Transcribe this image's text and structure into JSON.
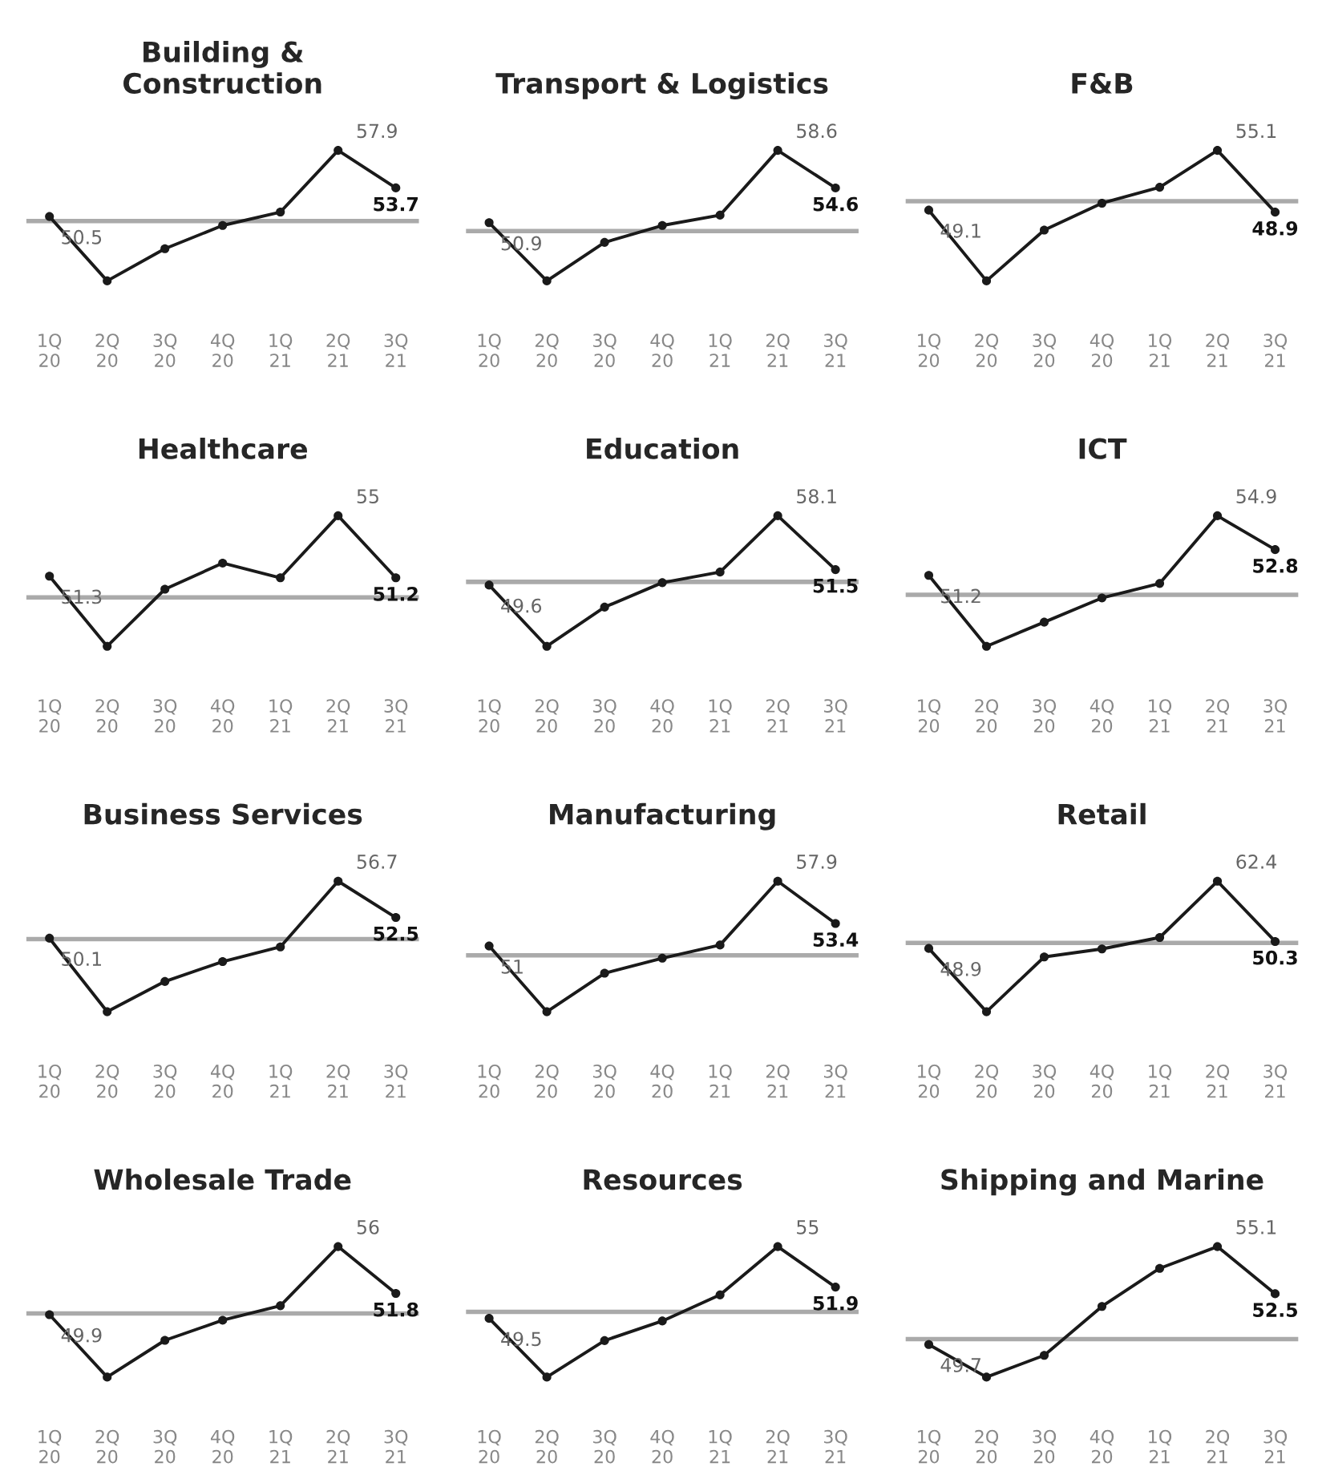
{
  "chart_data": [
    {
      "type": "line",
      "title": "Building &\nConstruction",
      "categories": [
        "1Q\n20",
        "2Q\n20",
        "3Q\n20",
        "4Q\n20",
        "1Q\n21",
        "2Q\n21",
        "3Q\n21"
      ],
      "series": [
        {
          "color": "#1a1a1a",
          "values": [
            50.5,
            43.3,
            46.9,
            49.5,
            51.0,
            57.9,
            53.7
          ],
          "value_labels": [
            "50.5",
            null,
            null,
            null,
            null,
            "57.9",
            "53.7"
          ]
        }
      ],
      "tick_labels": "x",
      "marker": "circle",
      "line_style": "solid",
      "grid": false,
      "legend": false,
      "ref_lines": [
        {
          "axis": "y",
          "value": 50,
          "color": "#aaaaaa"
        }
      ]
    },
    {
      "type": "line",
      "title": "Transport & Logistics",
      "categories": [
        "1Q\n20",
        "2Q\n20",
        "3Q\n20",
        "4Q\n20",
        "1Q\n21",
        "2Q\n21",
        "3Q\n21"
      ],
      "series": [
        {
          "color": "#1a1a1a",
          "values": [
            50.9,
            44.7,
            48.8,
            50.6,
            51.7,
            58.6,
            54.6
          ],
          "value_labels": [
            "50.9",
            null,
            null,
            null,
            null,
            "58.6",
            "54.6"
          ]
        }
      ],
      "tick_labels": "x",
      "marker": "circle",
      "line_style": "solid",
      "grid": false,
      "legend": false,
      "ref_lines": [
        {
          "axis": "y",
          "value": 50,
          "color": "#aaaaaa"
        }
      ]
    },
    {
      "type": "line",
      "title": "F&B",
      "categories": [
        "1Q\n20",
        "2Q\n20",
        "3Q\n20",
        "4Q\n20",
        "1Q\n21",
        "2Q\n21",
        "3Q\n21"
      ],
      "series": [
        {
          "color": "#1a1a1a",
          "values": [
            49.1,
            42.0,
            47.1,
            49.8,
            51.4,
            55.1,
            48.9
          ],
          "value_labels": [
            "49.1",
            null,
            null,
            null,
            null,
            "55.1",
            "48.9"
          ]
        }
      ],
      "tick_labels": "x",
      "marker": "circle",
      "line_style": "solid",
      "grid": false,
      "legend": false,
      "ref_lines": [
        {
          "axis": "y",
          "value": 50,
          "color": "#aaaaaa"
        }
      ]
    },
    {
      "type": "line",
      "title": "Healthcare",
      "categories": [
        "1Q\n20",
        "2Q\n20",
        "3Q\n20",
        "4Q\n20",
        "1Q\n21",
        "2Q\n21",
        "3Q\n21"
      ],
      "series": [
        {
          "color": "#1a1a1a",
          "values": [
            51.3,
            47.0,
            50.5,
            52.1,
            51.2,
            55,
            51.2
          ],
          "value_labels": [
            "51.3",
            null,
            null,
            null,
            null,
            "55",
            "51.2"
          ]
        }
      ],
      "tick_labels": "x",
      "marker": "circle",
      "line_style": "solid",
      "grid": false,
      "legend": false,
      "ref_lines": [
        {
          "axis": "y",
          "value": 50,
          "color": "#aaaaaa"
        }
      ]
    },
    {
      "type": "line",
      "title": "Education",
      "categories": [
        "1Q\n20",
        "2Q\n20",
        "3Q\n20",
        "4Q\n20",
        "1Q\n21",
        "2Q\n21",
        "3Q\n21"
      ],
      "series": [
        {
          "color": "#1a1a1a",
          "values": [
            49.6,
            42.1,
            46.9,
            49.9,
            51.2,
            58.1,
            51.5
          ],
          "value_labels": [
            "49.6",
            null,
            null,
            null,
            null,
            "58.1",
            "51.5"
          ]
        }
      ],
      "tick_labels": "x",
      "marker": "circle",
      "line_style": "solid",
      "grid": false,
      "legend": false,
      "ref_lines": [
        {
          "axis": "y",
          "value": 50,
          "color": "#aaaaaa"
        }
      ]
    },
    {
      "type": "line",
      "title": "ICT",
      "categories": [
        "1Q\n20",
        "2Q\n20",
        "3Q\n20",
        "4Q\n20",
        "1Q\n21",
        "2Q\n21",
        "3Q\n21"
      ],
      "series": [
        {
          "color": "#1a1a1a",
          "values": [
            51.2,
            46.8,
            48.3,
            49.8,
            50.7,
            54.9,
            52.8
          ],
          "value_labels": [
            "51.2",
            null,
            null,
            null,
            null,
            "54.9",
            "52.8"
          ]
        }
      ],
      "tick_labels": "x",
      "marker": "circle",
      "line_style": "solid",
      "grid": false,
      "legend": false,
      "ref_lines": [
        {
          "axis": "y",
          "value": 50,
          "color": "#aaaaaa"
        }
      ]
    },
    {
      "type": "line",
      "title": "Business Services",
      "categories": [
        "1Q\n20",
        "2Q\n20",
        "3Q\n20",
        "4Q\n20",
        "1Q\n21",
        "2Q\n21",
        "3Q\n21"
      ],
      "series": [
        {
          "color": "#1a1a1a",
          "values": [
            50.1,
            41.6,
            45.1,
            47.4,
            49.1,
            56.7,
            52.5
          ],
          "value_labels": [
            "50.1",
            null,
            null,
            null,
            null,
            "56.7",
            "52.5"
          ]
        }
      ],
      "tick_labels": "x",
      "marker": "circle",
      "line_style": "solid",
      "grid": false,
      "legend": false,
      "ref_lines": [
        {
          "axis": "y",
          "value": 50,
          "color": "#aaaaaa"
        }
      ]
    },
    {
      "type": "line",
      "title": "Manufacturing",
      "categories": [
        "1Q\n20",
        "2Q\n20",
        "3Q\n20",
        "4Q\n20",
        "1Q\n21",
        "2Q\n21",
        "3Q\n21"
      ],
      "series": [
        {
          "color": "#1a1a1a",
          "values": [
            51,
            44.0,
            48.1,
            49.7,
            51.1,
            57.9,
            53.4
          ],
          "value_labels": [
            "51",
            null,
            null,
            null,
            null,
            "57.9",
            "53.4"
          ]
        }
      ],
      "tick_labels": "x",
      "marker": "circle",
      "line_style": "solid",
      "grid": false,
      "legend": false,
      "ref_lines": [
        {
          "axis": "y",
          "value": 50,
          "color": "#aaaaaa"
        }
      ]
    },
    {
      "type": "line",
      "title": "Retail",
      "categories": [
        "1Q\n20",
        "2Q\n20",
        "3Q\n20",
        "4Q\n20",
        "1Q\n21",
        "2Q\n21",
        "3Q\n21"
      ],
      "series": [
        {
          "color": "#1a1a1a",
          "values": [
            48.9,
            36.2,
            47.2,
            48.8,
            51.1,
            62.4,
            50.3
          ],
          "value_labels": [
            "48.9",
            null,
            null,
            null,
            null,
            "62.4",
            "50.3"
          ]
        }
      ],
      "tick_labels": "x",
      "marker": "circle",
      "line_style": "solid",
      "grid": false,
      "legend": false,
      "ref_lines": [
        {
          "axis": "y",
          "value": 50,
          "color": "#aaaaaa"
        }
      ]
    },
    {
      "type": "line",
      "title": "Wholesale Trade",
      "categories": [
        "1Q\n20",
        "2Q\n20",
        "3Q\n20",
        "4Q\n20",
        "1Q\n21",
        "2Q\n21",
        "3Q\n21"
      ],
      "series": [
        {
          "color": "#1a1a1a",
          "values": [
            49.9,
            44.3,
            47.6,
            49.4,
            50.7,
            56,
            51.8
          ],
          "value_labels": [
            "49.9",
            null,
            null,
            null,
            null,
            "56",
            "51.8"
          ]
        }
      ],
      "tick_labels": "x",
      "marker": "circle",
      "line_style": "solid",
      "grid": false,
      "legend": false,
      "ref_lines": [
        {
          "axis": "y",
          "value": 50,
          "color": "#aaaaaa"
        }
      ]
    },
    {
      "type": "line",
      "title": "Resources",
      "categories": [
        "1Q\n20",
        "2Q\n20",
        "3Q\n20",
        "4Q\n20",
        "1Q\n21",
        "2Q\n21",
        "3Q\n21"
      ],
      "series": [
        {
          "color": "#1a1a1a",
          "values": [
            49.5,
            45.0,
            47.8,
            49.3,
            51.3,
            55,
            51.9
          ],
          "value_labels": [
            "49.5",
            null,
            null,
            null,
            null,
            "55",
            "51.9"
          ]
        }
      ],
      "tick_labels": "x",
      "marker": "circle",
      "line_style": "solid",
      "grid": false,
      "legend": false,
      "ref_lines": [
        {
          "axis": "y",
          "value": 50,
          "color": "#aaaaaa"
        }
      ]
    },
    {
      "type": "line",
      "title": "Shipping and Marine",
      "categories": [
        "1Q\n20",
        "2Q\n20",
        "3Q\n20",
        "4Q\n20",
        "1Q\n21",
        "2Q\n21",
        "3Q\n21"
      ],
      "series": [
        {
          "color": "#1a1a1a",
          "values": [
            49.7,
            47.9,
            49.1,
            51.8,
            53.9,
            55.1,
            52.5
          ],
          "value_labels": [
            "49.7",
            null,
            null,
            null,
            null,
            "55.1",
            "52.5"
          ]
        }
      ],
      "tick_labels": "x",
      "marker": "circle",
      "line_style": "solid",
      "grid": false,
      "legend": false,
      "ref_lines": [
        {
          "axis": "y",
          "value": 50,
          "color": "#aaaaaa"
        }
      ]
    }
  ]
}
